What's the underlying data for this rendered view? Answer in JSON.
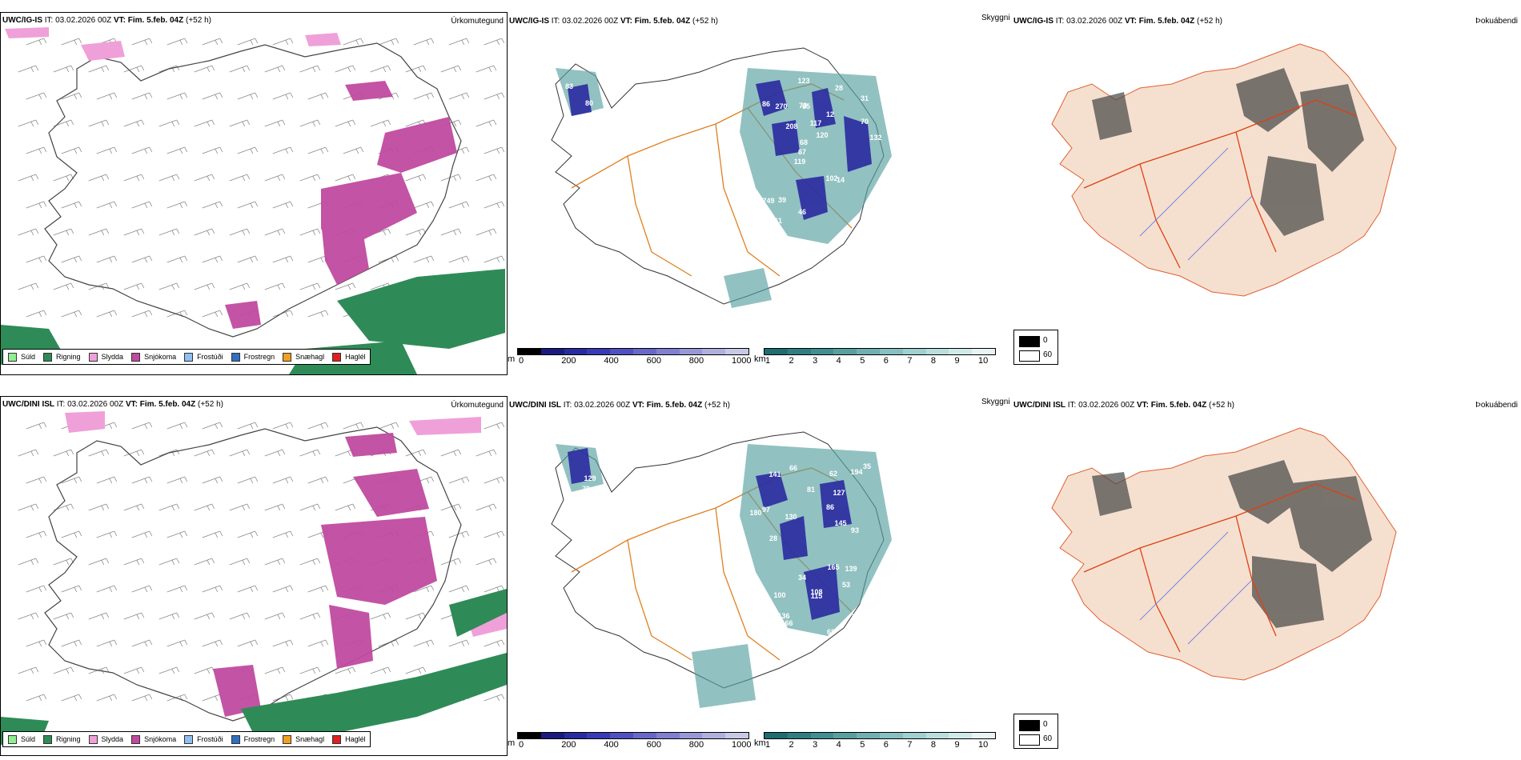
{
  "rows": [
    {
      "model": "UWC/IG-IS",
      "it_label": "IT:",
      "it_value": "03.02.2026 00Z",
      "vt_label": "VT:",
      "vt_value": "Fim. 5.feb. 04Z",
      "lead": "(+52 h)",
      "precip_title": "Úrkomutegund",
      "vis_title": "Skyggni",
      "cloud_title": "Þokuábendi"
    },
    {
      "model": "UWC/DINI ISL",
      "it_label": "IT:",
      "it_value": "03.02.2026 00Z",
      "vt_label": "VT:",
      "vt_value": "Fim. 5.feb. 04Z",
      "lead": "(+52 h)",
      "precip_title": "Úrkomutegund",
      "vis_title": "Skyggni",
      "cloud_title": "Þokuábendi"
    }
  ],
  "precip_legend": [
    {
      "label": "Súld",
      "color": "#90ee90"
    },
    {
      "label": "Rigning",
      "color": "#2e8b57"
    },
    {
      "label": "Slydda",
      "color": "#f0a0d8"
    },
    {
      "label": "Snjókoma",
      "color": "#c04aa0"
    },
    {
      "label": "Frostúði",
      "color": "#90c0f0"
    },
    {
      "label": "Frostregn",
      "color": "#3070c0"
    },
    {
      "label": "Snæhagl",
      "color": "#f0a020"
    },
    {
      "label": "Haglél",
      "color": "#e02020"
    }
  ],
  "ceiling_scale": {
    "unit": "m",
    "ticks": [
      "0",
      "200",
      "400",
      "600",
      "800",
      "1000"
    ],
    "colors": [
      "#000000",
      "#1a1a80",
      "#2a2aa0",
      "#3a3ab8",
      "#5050c0",
      "#6868c8",
      "#8080d0",
      "#9898d8",
      "#b0b0e0",
      "#c8c8e8"
    ]
  },
  "visibility_scale": {
    "unit": "km",
    "ticks": [
      "1",
      "2",
      "3",
      "4",
      "5",
      "6",
      "7",
      "8",
      "9",
      "10"
    ],
    "colors": [
      "#1e6e6e",
      "#2e8080",
      "#409090",
      "#58a0a0",
      "#70b0b0",
      "#88c0c0",
      "#a0d0d0",
      "#b8dede",
      "#d0eaea",
      "#e8f4f4"
    ]
  },
  "cloud_legend": [
    {
      "label": "0",
      "color": "#000000"
    },
    {
      "label": "60",
      "color": "#ffffff"
    }
  ],
  "ceiling_labels_top": [
    "80",
    "83",
    "31",
    "119",
    "12",
    "135",
    "73",
    "117",
    "749",
    "208",
    "88",
    "51",
    "65",
    "120",
    "14",
    "86",
    "123",
    "132",
    "102",
    "70",
    "67",
    "46",
    "68",
    "270",
    "28",
    "39"
  ],
  "ceiling_labels_bottom": [
    "129",
    "79",
    "115",
    "174",
    "108",
    "130",
    "66",
    "127",
    "68",
    "93",
    "165",
    "194",
    "180",
    "145",
    "166",
    "141",
    "100",
    "136",
    "62",
    "81",
    "97",
    "139",
    "79",
    "28",
    "35",
    "86",
    "53",
    "34"
  ]
}
